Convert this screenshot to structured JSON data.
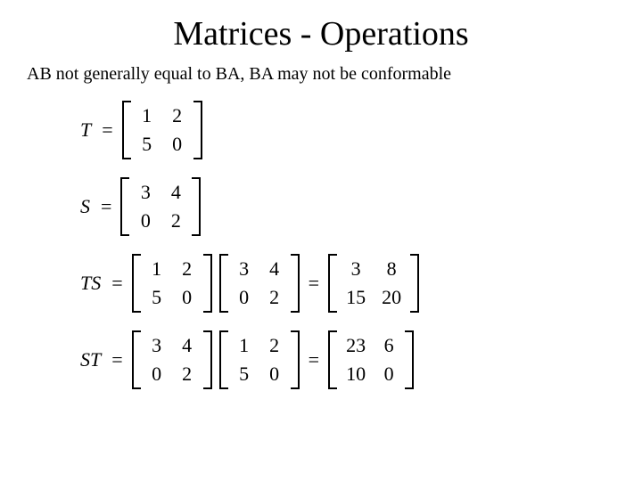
{
  "title": "Matrices - Operations",
  "subtitle": "AB not generally equal to BA, BA may not be conformable",
  "style": {
    "font_family": "Times New Roman",
    "title_fontsize": 38,
    "subtitle_fontsize": 20,
    "math_fontsize": 22,
    "background_color": "#ffffff",
    "text_color": "#000000",
    "bracket_color": "#000000"
  },
  "equations": {
    "T": {
      "label": "T",
      "rows": [
        [
          "1",
          "2"
        ],
        [
          "5",
          "0"
        ]
      ]
    },
    "S": {
      "label": "S",
      "rows": [
        [
          "3",
          "4"
        ],
        [
          "0",
          "2"
        ]
      ]
    },
    "TS": {
      "label": "TS",
      "factor1": [
        [
          "1",
          "2"
        ],
        [
          "5",
          "0"
        ]
      ],
      "factor2": [
        [
          "3",
          "4"
        ],
        [
          "0",
          "2"
        ]
      ],
      "result": [
        [
          "3",
          "8"
        ],
        [
          "15",
          "20"
        ]
      ]
    },
    "ST": {
      "label": "ST",
      "factor1": [
        [
          "3",
          "4"
        ],
        [
          "0",
          "2"
        ]
      ],
      "factor2": [
        [
          "1",
          "2"
        ],
        [
          "5",
          "0"
        ]
      ],
      "result": [
        [
          "23",
          "6"
        ],
        [
          "10",
          "0"
        ]
      ]
    }
  }
}
